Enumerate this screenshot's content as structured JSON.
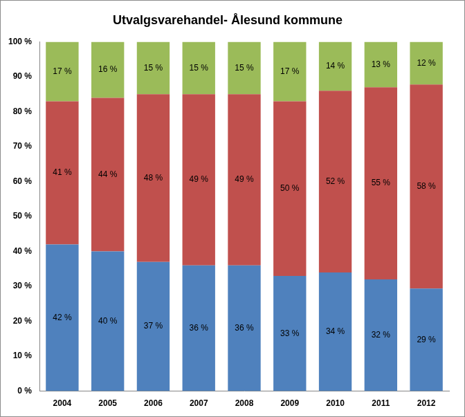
{
  "chart_data": {
    "type": "bar",
    "title": "Utvalgsvarehandel- Ålesund kommune",
    "categories": [
      "2004",
      "2005",
      "2006",
      "2007",
      "2008",
      "2009",
      "2010",
      "2011",
      "2012"
    ],
    "series": [
      {
        "color": "#4f81bd",
        "values": [
          42,
          40,
          37,
          36,
          36,
          33,
          34,
          32,
          29.4
        ],
        "value_labels": [
          "42 %",
          "40 %",
          "37 %",
          "36 %",
          "36 %",
          "33 %",
          "34 %",
          "32 %",
          "29 %"
        ]
      },
      {
        "color": "#c0504d",
        "values": [
          41,
          44,
          48,
          49,
          49,
          50,
          52,
          55,
          58.4
        ],
        "value_labels": [
          "41 %",
          "44 %",
          "48 %",
          "49 %",
          "49 %",
          "50 %",
          "52 %",
          "55 %",
          "58 %"
        ]
      },
      {
        "color": "#9bbb59",
        "values": [
          17,
          16,
          15,
          15,
          15,
          17,
          14,
          13,
          12.2
        ],
        "value_labels": [
          "17 %",
          "16 %",
          "15 %",
          "15 %",
          "15 %",
          "17 %",
          "14 %",
          "13 %",
          "12 %"
        ]
      }
    ],
    "ylim": [
      0,
      100
    ],
    "yticks": [
      {
        "value": 0,
        "label": "0 %"
      },
      {
        "value": 10,
        "label": "10 %"
      },
      {
        "value": 20,
        "label": "20 %"
      },
      {
        "value": 30,
        "label": "30 %"
      },
      {
        "value": 40,
        "label": "40 %"
      },
      {
        "value": 50,
        "label": "50 %"
      },
      {
        "value": 60,
        "label": "60 %"
      },
      {
        "value": 70,
        "label": "70 %"
      },
      {
        "value": 80,
        "label": "80 %"
      },
      {
        "value": 90,
        "label": "90 %"
      },
      {
        "value": 100,
        "label": "100 %"
      }
    ],
    "stacked": true,
    "grid": false,
    "data_labels": true
  }
}
